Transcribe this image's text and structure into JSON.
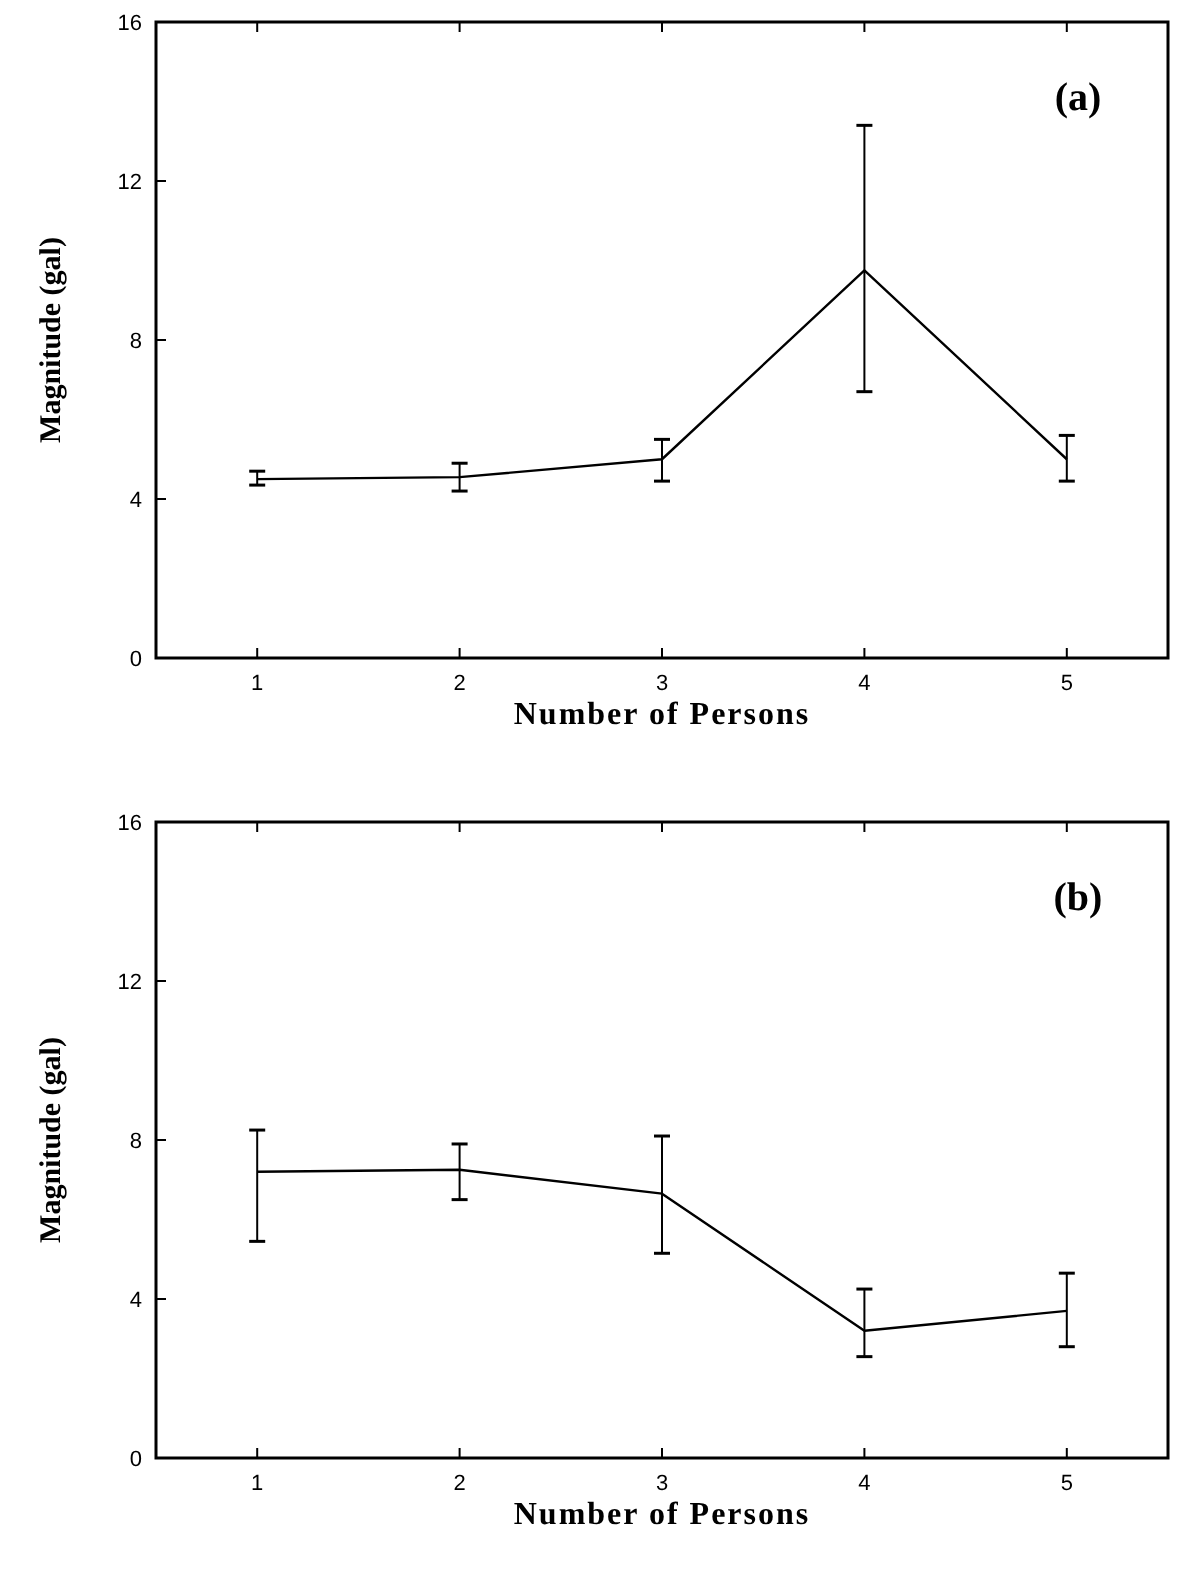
{
  "chart_data": [
    {
      "type": "line",
      "xlabel": "Number of Persons",
      "ylabel": "Magnitude (gal)",
      "annotations": [
        "(a)"
      ],
      "x": [
        1,
        2,
        3,
        4,
        5
      ],
      "xlim": [
        0.5,
        5.5
      ],
      "xticks": [
        1,
        2,
        3,
        4,
        5
      ],
      "ylim": [
        0,
        16
      ],
      "yticks": [
        0,
        4,
        8,
        12,
        16
      ],
      "marker": "none",
      "line_style": "solid",
      "grid": false,
      "series": [
        {
          "color": "#000000",
          "values": [
            4.5,
            4.55,
            5.0,
            9.75,
            5.0
          ],
          "errors": [
            [
              4.35,
              4.7
            ],
            [
              4.2,
              4.9
            ],
            [
              4.45,
              5.5
            ],
            [
              6.7,
              13.4
            ],
            [
              4.45,
              5.6
            ]
          ]
        }
      ]
    },
    {
      "type": "line",
      "xlabel": "Number of Persons",
      "ylabel": "Magnitude (gal)",
      "annotations": [
        "(b)"
      ],
      "x": [
        1,
        2,
        3,
        4,
        5
      ],
      "xlim": [
        0.5,
        5.5
      ],
      "xticks": [
        1,
        2,
        3,
        4,
        5
      ],
      "ylim": [
        0,
        16
      ],
      "yticks": [
        0,
        4,
        8,
        12,
        16
      ],
      "marker": "none",
      "line_style": "solid",
      "grid": false,
      "series": [
        {
          "color": "#000000",
          "values": [
            7.2,
            7.25,
            6.65,
            3.2,
            3.7
          ],
          "errors": [
            [
              5.45,
              8.25
            ],
            [
              6.5,
              7.9
            ],
            [
              5.15,
              8.1
            ],
            [
              2.55,
              4.25
            ],
            [
              2.8,
              4.65
            ]
          ]
        }
      ]
    }
  ]
}
